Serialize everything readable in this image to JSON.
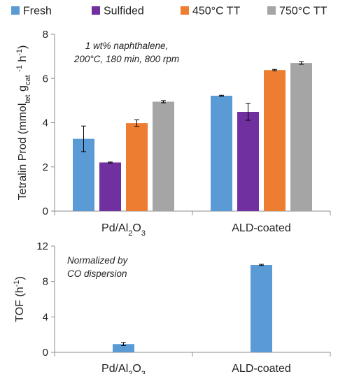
{
  "colors": {
    "Fresh": "#5b9bd5",
    "Sulfided": "#7030a0",
    "450°C TT": "#ed7d31",
    "750°C TT": "#a5a5a5",
    "axis": "#8c8c8c",
    "errorbar": "#000000"
  },
  "legend": {
    "placement": "top",
    "items": [
      "Fresh",
      "Sulfided",
      "450°C TT",
      "750°C TT"
    ]
  },
  "chart_data": [
    {
      "type": "bar",
      "annotation": [
        "1 wt% naphthalene,",
        "200°C, 180 min, 800 rpm"
      ],
      "ylabel": {
        "text": "Tetralin Prod (mmol",
        "sub1": "tet",
        "mid": " g",
        "sub2": "cat",
        "sup": "-1",
        "tail": " h",
        "sup2": "-1",
        "close": ")"
      },
      "ylim": [
        0,
        8
      ],
      "yticks": [
        0,
        2,
        4,
        6,
        8
      ],
      "categories": [
        {
          "base": "Pd/Al",
          "sub": "2",
          "mid": "O",
          "sub2": "3"
        },
        {
          "base": "ALD-coated"
        }
      ],
      "series": [
        {
          "name": "Fresh",
          "values": [
            3.27,
            5.22
          ],
          "errors": [
            0.58,
            0.02
          ]
        },
        {
          "name": "Sulfided",
          "values": [
            2.2,
            4.49
          ],
          "errors": [
            0.02,
            0.38
          ]
        },
        {
          "name": "450°C TT",
          "values": [
            3.98,
            6.38
          ],
          "errors": [
            0.15,
            0.03
          ]
        },
        {
          "name": "750°C TT",
          "values": [
            4.95,
            6.7
          ],
          "errors": [
            0.05,
            0.06
          ]
        }
      ],
      "grid": false
    },
    {
      "type": "bar",
      "annotation": [
        "Normalized by",
        "CO dispersion"
      ],
      "ylabel": {
        "text": "TOF (h",
        "sup": "-1",
        "close": ")"
      },
      "ylim": [
        0,
        12
      ],
      "yticks": [
        0,
        4,
        8,
        12
      ],
      "categories": [
        {
          "base": "Pd/Al",
          "sub": "2",
          "mid": "O",
          "sub2": "3"
        },
        {
          "base": "ALD-coated"
        }
      ],
      "series": [
        {
          "name": "Fresh",
          "values": [
            0.93,
            9.87
          ],
          "errors": [
            0.18,
            0.07
          ]
        }
      ],
      "grid": false
    }
  ]
}
